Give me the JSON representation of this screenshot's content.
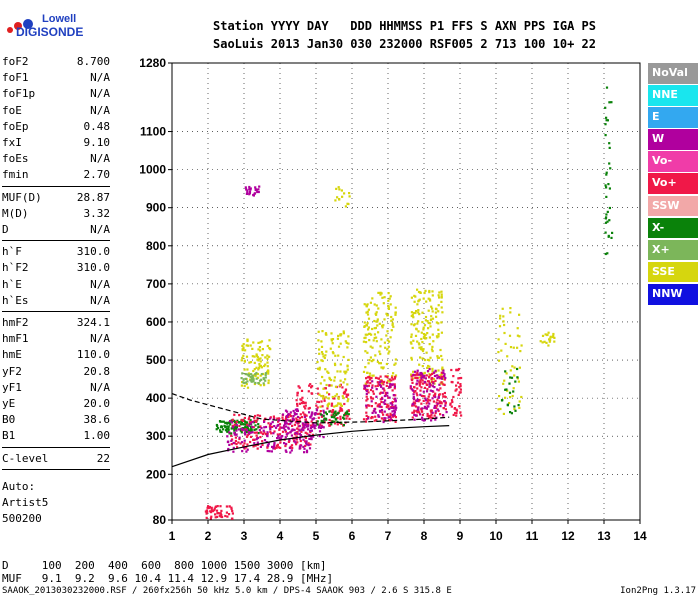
{
  "logo": {
    "line1": "Lowell",
    "line2": "DIGISONDE"
  },
  "header": {
    "labels": [
      "Station",
      "YYYY",
      "DAY",
      "DDD",
      "HHMMSS",
      "P1",
      "FFS",
      "S",
      "AXN",
      "PPS",
      "IGA",
      "PS"
    ],
    "values": [
      "SaoLuis",
      "2013",
      "Jan30",
      "030",
      "232000",
      "RSF",
      "005",
      "2",
      "713",
      "100",
      "10+",
      "22"
    ]
  },
  "params": {
    "group1": [
      {
        "k": "foF2",
        "v": "8.700"
      },
      {
        "k": "foF1",
        "v": "N/A"
      },
      {
        "k": "foF1p",
        "v": "N/A"
      },
      {
        "k": "foE",
        "v": "N/A"
      },
      {
        "k": "foEp",
        "v": "0.48"
      },
      {
        "k": "fxI",
        "v": "9.10"
      },
      {
        "k": "foEs",
        "v": "N/A"
      },
      {
        "k": "fmin",
        "v": "2.70"
      }
    ],
    "group2": [
      {
        "k": "MUF(D)",
        "v": "28.87"
      },
      {
        "k": "M(D)",
        "v": "3.32"
      },
      {
        "k": "D",
        "v": "N/A"
      }
    ],
    "group3": [
      {
        "k": "h`F",
        "v": "310.0"
      },
      {
        "k": "h`F2",
        "v": "310.0"
      },
      {
        "k": "h`E",
        "v": "N/A"
      },
      {
        "k": "h`Es",
        "v": "N/A"
      }
    ],
    "group4": [
      {
        "k": "hmF2",
        "v": "324.1"
      },
      {
        "k": "hmF1",
        "v": "N/A"
      },
      {
        "k": "hmE",
        "v": "110.0"
      },
      {
        "k": "yF2",
        "v": "20.8"
      },
      {
        "k": "yF1",
        "v": "N/A"
      },
      {
        "k": "yE",
        "v": "20.0"
      },
      {
        "k": "B0",
        "v": "38.6"
      },
      {
        "k": "B1",
        "v": "1.00"
      }
    ],
    "group5": [
      {
        "k": "C-level",
        "v": "22"
      }
    ],
    "auto": [
      "Auto:",
      "Artist5",
      "500200"
    ]
  },
  "legend": [
    {
      "label": "NoVal",
      "color": "#999999"
    },
    {
      "label": "NNE",
      "color": "#19e6ee"
    },
    {
      "label": "E",
      "color": "#33a8f0"
    },
    {
      "label": "W",
      "color": "#b0009e"
    },
    {
      "label": "Vo-",
      "color": "#f03ca8"
    },
    {
      "label": "Vo+",
      "color": "#f01848"
    },
    {
      "label": "SSW",
      "color": "#f2a8a8"
    },
    {
      "label": "X-",
      "color": "#0a820a"
    },
    {
      "label": "X+",
      "color": "#7cb65a"
    },
    {
      "label": "SSE",
      "color": "#d6d60e"
    },
    {
      "label": "NNW",
      "color": "#1010e0"
    }
  ],
  "bottom": {
    "d_row": "D     100  200  400  600  800 1000 1500 3000 [km]",
    "muf_row": "MUF   9.1  9.2  9.6 10.4 11.4 12.9 17.4 28.9 [MHz]",
    "footer": "SAAOK_2013030232000.RSF / 260fx256h 50 kHz 5.0 km / DPS-4 SAAOK 903 / 2.6 S 315.8 E",
    "footer_right": "Ion2Png 1.3.17"
  },
  "chart_data": {
    "type": "scatter",
    "xlim": [
      1,
      14
    ],
    "ylim": [
      80,
      1280
    ],
    "x_ticks": [
      1,
      2,
      3,
      4,
      5,
      6,
      7,
      8,
      9,
      10,
      11,
      12,
      13,
      14
    ],
    "y_ticks": [
      80,
      200,
      300,
      400,
      500,
      600,
      700,
      800,
      900,
      1000,
      1100,
      1280
    ],
    "grid": true,
    "legend_position": "right",
    "clusters": [
      {
        "series": "X-",
        "x": [
          2.2,
          3.4
        ],
        "y": [
          310,
          345
        ],
        "n": 110
      },
      {
        "series": "Vo+",
        "x": [
          2.6,
          4.9
        ],
        "y": [
          270,
          360
        ],
        "n": 180
      },
      {
        "series": "W",
        "x": [
          2.5,
          4.9
        ],
        "y": [
          260,
          350
        ],
        "n": 140
      },
      {
        "series": "SSE",
        "x": [
          2.9,
          3.7
        ],
        "y": [
          430,
          560
        ],
        "n": 90
      },
      {
        "series": "X+",
        "x": [
          2.9,
          3.6
        ],
        "y": [
          440,
          470
        ],
        "n": 40
      },
      {
        "series": "Vo+",
        "x": [
          4.4,
          5.9
        ],
        "y": [
          330,
          440
        ],
        "n": 130
      },
      {
        "series": "W",
        "x": [
          4.0,
          5.2
        ],
        "y": [
          300,
          380
        ],
        "n": 90
      },
      {
        "series": "SSE",
        "x": [
          5.0,
          5.9
        ],
        "y": [
          380,
          580
        ],
        "n": 110
      },
      {
        "series": "X-",
        "x": [
          5.0,
          5.9
        ],
        "y": [
          330,
          370
        ],
        "n": 40
      },
      {
        "series": "SSE",
        "x": [
          6.3,
          7.2
        ],
        "y": [
          440,
          680
        ],
        "n": 140
      },
      {
        "series": "Vo+",
        "x": [
          6.3,
          7.2
        ],
        "y": [
          340,
          460
        ],
        "n": 130
      },
      {
        "series": "W",
        "x": [
          6.3,
          7.2
        ],
        "y": [
          340,
          450
        ],
        "n": 70
      },
      {
        "series": "SSE",
        "x": [
          7.6,
          8.5
        ],
        "y": [
          440,
          690
        ],
        "n": 170
      },
      {
        "series": "Vo+",
        "x": [
          7.6,
          8.6
        ],
        "y": [
          350,
          470
        ],
        "n": 160
      },
      {
        "series": "W",
        "x": [
          7.6,
          8.6
        ],
        "y": [
          340,
          480
        ],
        "n": 90
      },
      {
        "series": "Vo+",
        "x": [
          8.7,
          9.0
        ],
        "y": [
          350,
          480
        ],
        "n": 40
      },
      {
        "series": "SSE",
        "x": [
          10.0,
          10.7
        ],
        "y": [
          360,
          640
        ],
        "n": 50
      },
      {
        "series": "X-",
        "x": [
          10.1,
          10.6
        ],
        "y": [
          360,
          480
        ],
        "n": 20
      },
      {
        "series": "SSE",
        "x": [
          11.2,
          11.6
        ],
        "y": [
          540,
          580
        ],
        "n": 20
      },
      {
        "series": "Vo+",
        "x": [
          1.9,
          2.7
        ],
        "y": [
          85,
          120
        ],
        "n": 50
      },
      {
        "series": "W",
        "x": [
          3.0,
          3.4
        ],
        "y": [
          935,
          960
        ],
        "n": 25
      },
      {
        "series": "SSE",
        "x": [
          5.5,
          6.0
        ],
        "y": [
          900,
          960
        ],
        "n": 15
      },
      {
        "series": "X-",
        "x": [
          13.0,
          13.2
        ],
        "y": [
          780,
          1220
        ],
        "n": 35
      }
    ],
    "trace_solid": {
      "x": [
        1.0,
        2.0,
        3.0,
        4.0,
        5.0,
        6.0,
        7.0,
        8.0,
        8.7
      ],
      "y": [
        220,
        252,
        272,
        290,
        303,
        313,
        320,
        325,
        328
      ]
    },
    "trace_dashed": {
      "x": [
        1.0,
        1.5,
        2.5,
        3.5,
        5.0,
        6.5,
        8.0,
        8.7
      ],
      "y": [
        412,
        395,
        370,
        345,
        335,
        338,
        345,
        350
      ]
    }
  }
}
